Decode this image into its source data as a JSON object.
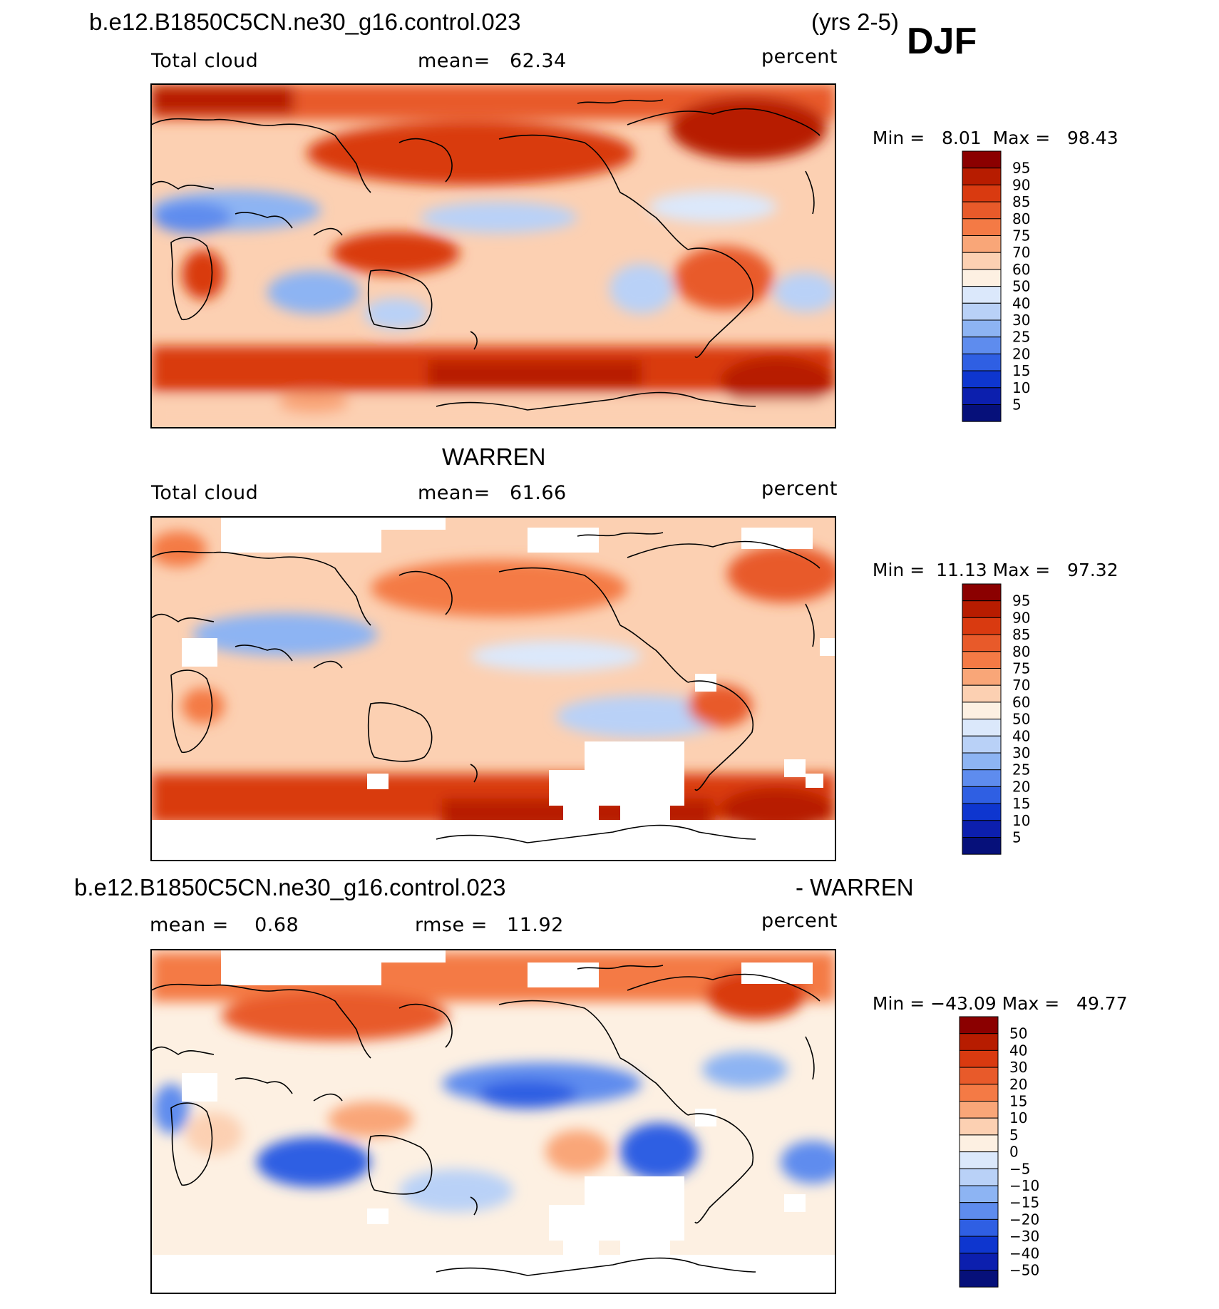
{
  "header": {
    "case_name": "b.e12.B1850C5CN.ne30_g16.control.023",
    "years": "(yrs 2-5)",
    "season": "DJF"
  },
  "panels": [
    {
      "id": "model",
      "title": "",
      "variable": "Total cloud",
      "stat_left": "mean=   62.34",
      "units": "percent",
      "min_label": "Min =",
      "min_value": "8.01",
      "max_label": "Max =",
      "max_value": "98.43",
      "colorbar_labels": [
        "95",
        "90",
        "85",
        "80",
        "75",
        "70",
        "60",
        "50",
        "40",
        "30",
        "25",
        "20",
        "15",
        "10",
        "5"
      ]
    },
    {
      "id": "obs",
      "title": "WARREN",
      "variable": "Total cloud",
      "stat_left": "mean=   61.66",
      "units": "percent",
      "min_label": "Min =",
      "min_value": "11.13",
      "max_label": "Max =",
      "max_value": "97.32",
      "colorbar_labels": [
        "95",
        "90",
        "85",
        "80",
        "75",
        "70",
        "60",
        "50",
        "40",
        "30",
        "25",
        "20",
        "15",
        "10",
        "5"
      ]
    },
    {
      "id": "diff",
      "title_left": "b.e12.B1850C5CN.ne30_g16.control.023",
      "title_right": "- WARREN",
      "stat_left": "mean =    0.68",
      "stat_mid": "rmse =   11.92",
      "units": "percent",
      "min_label": "Min =",
      "min_value": "−43.09",
      "max_label": "Max =",
      "max_value": "49.77",
      "colorbar_labels": [
        "50",
        "40",
        "30",
        "20",
        "15",
        "10",
        "5",
        "0",
        "−5",
        "−10",
        "−15",
        "−20",
        "−30",
        "−40",
        "−50"
      ]
    }
  ],
  "colorbar_colors": [
    "#8b0000",
    "#b71c00",
    "#d93a10",
    "#e85a2a",
    "#f47a45",
    "#f9a678",
    "#fcd0b2",
    "#fdf0e2",
    "#dbe8fb",
    "#b9d1f7",
    "#8db4f3",
    "#5e8cee",
    "#2f5fe3",
    "#0e36cf",
    "#0c1fae",
    "#06107a"
  ]
}
